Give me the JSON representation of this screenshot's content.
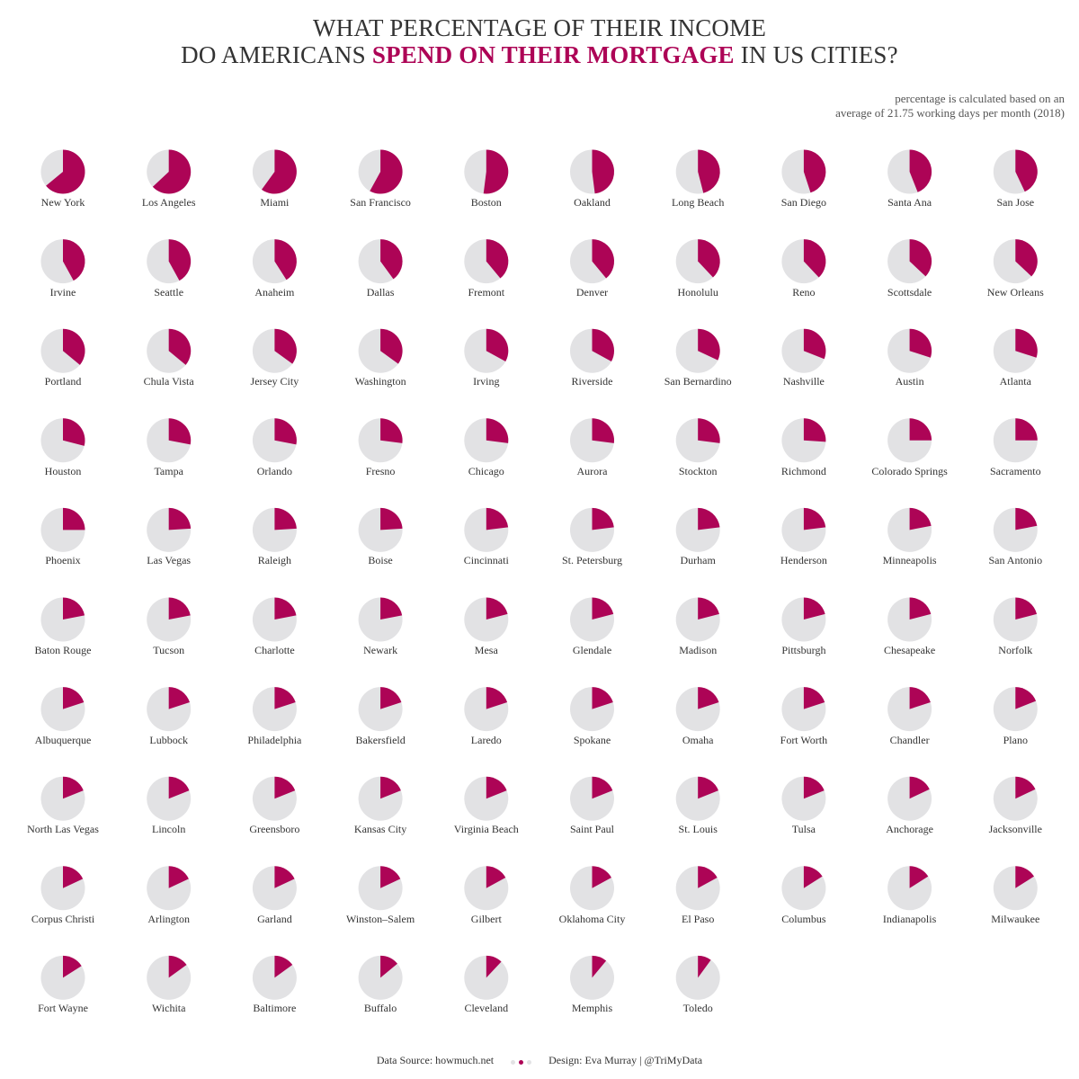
{
  "header": {
    "title_line1": "WHAT PERCENTAGE OF THEIR INCOME",
    "title_line2_pre": "DO AMERICANS ",
    "title_line2_highlight": "SPEND ON THEIR MORTGAGE",
    "title_line2_post": " IN US CITIES?",
    "note_line1": "percentage is calculated based on an",
    "note_line2": "average of 21.75 working days per month (2018)"
  },
  "footer": {
    "source": "Data Source: howmuch.net",
    "design": "Design: Eva Murray | @TriMyData"
  },
  "colors": {
    "accent": "#ad0456",
    "pie_background": "#e2e2e4"
  },
  "chart_data": {
    "type": "pie",
    "title": "WHAT PERCENTAGE OF THEIR INCOME DO AMERICANS SPEND ON THEIR MORTGAGE IN US CITIES?",
    "unit": "percent of income",
    "cities": [
      {
        "name": "New York",
        "value": 64
      },
      {
        "name": "Los Angeles",
        "value": 63
      },
      {
        "name": "Miami",
        "value": 60
      },
      {
        "name": "San Francisco",
        "value": 58
      },
      {
        "name": "Boston",
        "value": 52
      },
      {
        "name": "Oakland",
        "value": 48
      },
      {
        "name": "Long Beach",
        "value": 46
      },
      {
        "name": "San Diego",
        "value": 45
      },
      {
        "name": "Santa Ana",
        "value": 44
      },
      {
        "name": "San Jose",
        "value": 43
      },
      {
        "name": "Irvine",
        "value": 42
      },
      {
        "name": "Seattle",
        "value": 42
      },
      {
        "name": "Anaheim",
        "value": 41
      },
      {
        "name": "Dallas",
        "value": 40
      },
      {
        "name": "Fremont",
        "value": 39
      },
      {
        "name": "Denver",
        "value": 39
      },
      {
        "name": "Honolulu",
        "value": 38
      },
      {
        "name": "Reno",
        "value": 38
      },
      {
        "name": "Scottsdale",
        "value": 37
      },
      {
        "name": "New Orleans",
        "value": 37
      },
      {
        "name": "Portland",
        "value": 36
      },
      {
        "name": "Chula Vista",
        "value": 36
      },
      {
        "name": "Jersey City",
        "value": 35
      },
      {
        "name": "Washington",
        "value": 35
      },
      {
        "name": "Irving",
        "value": 33
      },
      {
        "name": "Riverside",
        "value": 33
      },
      {
        "name": "San Bernardino",
        "value": 32
      },
      {
        "name": "Nashville",
        "value": 31
      },
      {
        "name": "Austin",
        "value": 30
      },
      {
        "name": "Atlanta",
        "value": 30
      },
      {
        "name": "Houston",
        "value": 29
      },
      {
        "name": "Tampa",
        "value": 28
      },
      {
        "name": "Orlando",
        "value": 28
      },
      {
        "name": "Fresno",
        "value": 27
      },
      {
        "name": "Chicago",
        "value": 27
      },
      {
        "name": "Aurora",
        "value": 27
      },
      {
        "name": "Stockton",
        "value": 27
      },
      {
        "name": "Richmond",
        "value": 26
      },
      {
        "name": "Colorado Springs",
        "value": 25
      },
      {
        "name": "Sacramento",
        "value": 25
      },
      {
        "name": "Phoenix",
        "value": 25
      },
      {
        "name": "Las Vegas",
        "value": 24
      },
      {
        "name": "Raleigh",
        "value": 24
      },
      {
        "name": "Boise",
        "value": 24
      },
      {
        "name": "Cincinnati",
        "value": 23
      },
      {
        "name": "St. Petersburg",
        "value": 23
      },
      {
        "name": "Durham",
        "value": 23
      },
      {
        "name": "Henderson",
        "value": 23
      },
      {
        "name": "Minneapolis",
        "value": 22
      },
      {
        "name": "San Antonio",
        "value": 22
      },
      {
        "name": "Baton Rouge",
        "value": 22
      },
      {
        "name": "Tucson",
        "value": 22
      },
      {
        "name": "Charlotte",
        "value": 22
      },
      {
        "name": "Newark",
        "value": 22
      },
      {
        "name": "Mesa",
        "value": 21
      },
      {
        "name": "Glendale",
        "value": 21
      },
      {
        "name": "Madison",
        "value": 21
      },
      {
        "name": "Pittsburgh",
        "value": 21
      },
      {
        "name": "Chesapeake",
        "value": 21
      },
      {
        "name": "Norfolk",
        "value": 21
      },
      {
        "name": "Albuquerque",
        "value": 20
      },
      {
        "name": "Lubbock",
        "value": 20
      },
      {
        "name": "Philadelphia",
        "value": 20
      },
      {
        "name": "Bakersfield",
        "value": 20
      },
      {
        "name": "Laredo",
        "value": 20
      },
      {
        "name": "Spokane",
        "value": 20
      },
      {
        "name": "Omaha",
        "value": 20
      },
      {
        "name": "Fort Worth",
        "value": 20
      },
      {
        "name": "Chandler",
        "value": 20
      },
      {
        "name": "Plano",
        "value": 19
      },
      {
        "name": "North Las Vegas",
        "value": 19
      },
      {
        "name": "Lincoln",
        "value": 19
      },
      {
        "name": "Greensboro",
        "value": 19
      },
      {
        "name": "Kansas City",
        "value": 19
      },
      {
        "name": "Virginia Beach",
        "value": 19
      },
      {
        "name": "Saint Paul",
        "value": 19
      },
      {
        "name": "St. Louis",
        "value": 19
      },
      {
        "name": "Tulsa",
        "value": 19
      },
      {
        "name": "Anchorage",
        "value": 18
      },
      {
        "name": "Jacksonville",
        "value": 18
      },
      {
        "name": "Corpus Christi",
        "value": 18
      },
      {
        "name": "Arlington",
        "value": 18
      },
      {
        "name": "Garland",
        "value": 18
      },
      {
        "name": "Winston–Salem",
        "value": 18
      },
      {
        "name": "Gilbert",
        "value": 17
      },
      {
        "name": "Oklahoma City",
        "value": 17
      },
      {
        "name": "El Paso",
        "value": 17
      },
      {
        "name": "Columbus",
        "value": 16
      },
      {
        "name": "Indianapolis",
        "value": 16
      },
      {
        "name": "Milwaukee",
        "value": 16
      },
      {
        "name": "Fort Wayne",
        "value": 16
      },
      {
        "name": "Wichita",
        "value": 15
      },
      {
        "name": "Baltimore",
        "value": 15
      },
      {
        "name": "Buffalo",
        "value": 14
      },
      {
        "name": "Cleveland",
        "value": 12
      },
      {
        "name": "Memphis",
        "value": 11
      },
      {
        "name": "Toledo",
        "value": 10
      }
    ]
  }
}
